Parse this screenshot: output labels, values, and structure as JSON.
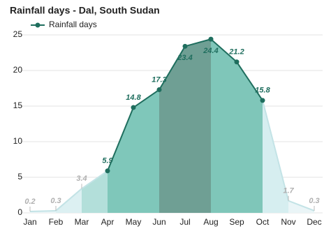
{
  "chart_data": {
    "type": "line",
    "title": "Rainfall days - Dal, South Sudan",
    "categories": [
      "Jan",
      "Feb",
      "Mar",
      "Apr",
      "May",
      "Jun",
      "Jul",
      "Aug",
      "Sep",
      "Oct",
      "Nov",
      "Dec"
    ],
    "series": [
      {
        "name": "Rainfall days",
        "color": "#1f6e5e",
        "values": [
          0.2,
          0.3,
          3.4,
          5.9,
          14.8,
          17.3,
          23.4,
          24.4,
          21.2,
          15.8,
          1.7,
          0.3
        ]
      }
    ],
    "ylim": [
      0,
      25
    ],
    "yticks": [
      0,
      5,
      10,
      15,
      20,
      25
    ],
    "grid": true
  }
}
